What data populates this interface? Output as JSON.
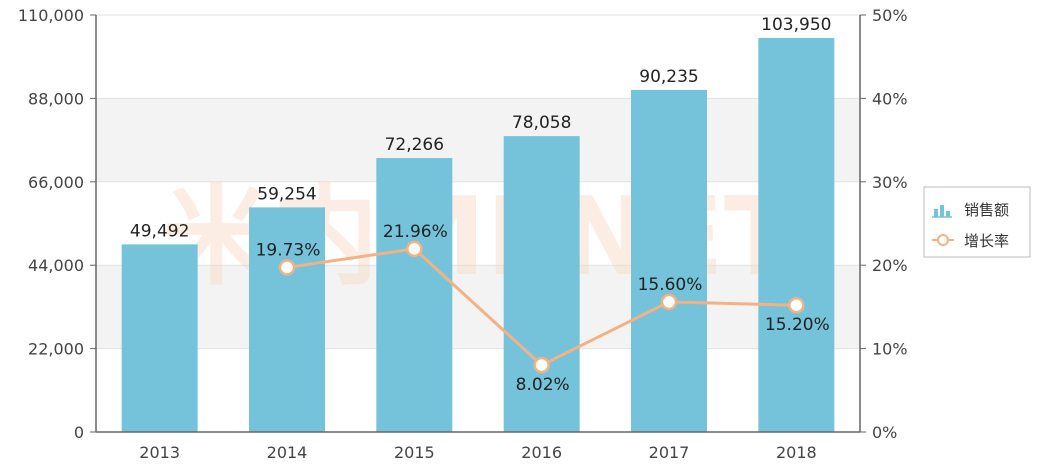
{
  "chart_data": {
    "type": "bar",
    "categories": [
      "2013",
      "2014",
      "2015",
      "2016",
      "2017",
      "2018"
    ],
    "series": [
      {
        "name": "销售额",
        "type": "bar",
        "axis": "left",
        "values": [
          49492,
          59254,
          72266,
          78058,
          90235,
          103950
        ],
        "value_labels": [
          "49,492",
          "59,254",
          "72,266",
          "78,058",
          "90,235",
          "103,950"
        ],
        "color": "#74c3da"
      },
      {
        "name": "增长率",
        "type": "line",
        "axis": "right",
        "values": [
          null,
          19.73,
          21.96,
          8.02,
          15.6,
          15.2
        ],
        "value_labels": [
          "",
          "19.73%",
          "21.96%",
          "8.02%",
          "15.60%",
          "15.20%"
        ],
        "color": "#f4b184"
      }
    ],
    "y_left": {
      "ylim": [
        0,
        110000
      ],
      "ticks": [
        0,
        22000,
        44000,
        66000,
        88000,
        110000
      ],
      "tick_labels": [
        "0",
        "22,000",
        "44,000",
        "66,000",
        "88,000",
        "110,000"
      ]
    },
    "y_right": {
      "ylim": [
        0,
        50
      ],
      "ticks": [
        0,
        10,
        20,
        30,
        40,
        50
      ],
      "tick_labels": [
        "0%",
        "10%",
        "20%",
        "30%",
        "40%",
        "50%"
      ]
    },
    "grid": true,
    "legend": "right",
    "watermark": "米内MENET"
  }
}
